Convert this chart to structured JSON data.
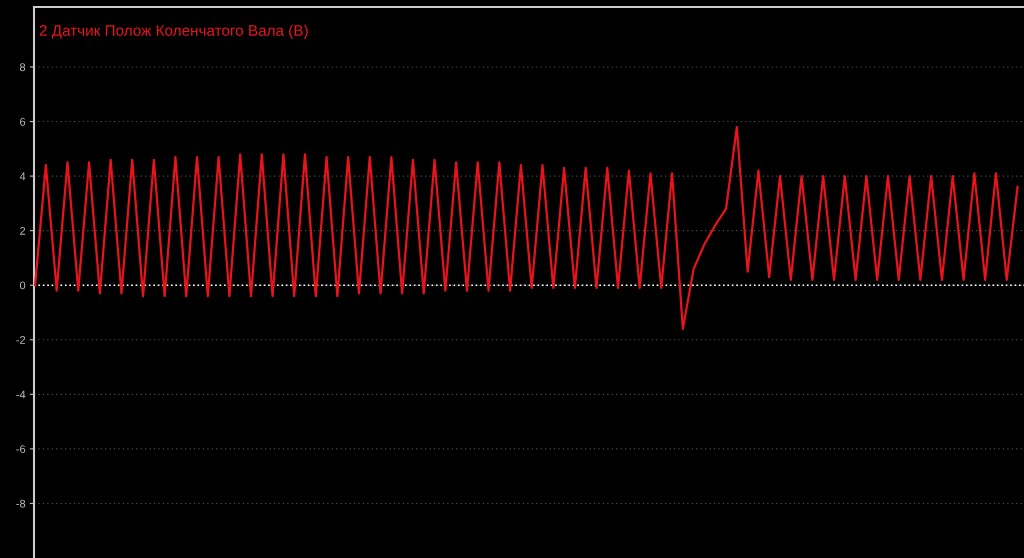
{
  "chart_data": {
    "type": "line",
    "title": "2 Датчик Полож Коленчатого Вала (В)",
    "categories": [
      null,
      null,
      null,
      null,
      null,
      null,
      null,
      null,
      null,
      null,
      null,
      null,
      null,
      null,
      null,
      null,
      null,
      null,
      null,
      null,
      null,
      null,
      null,
      null,
      null,
      null,
      null,
      null,
      null,
      null,
      null,
      null,
      null,
      null,
      null,
      null,
      null,
      null,
      null,
      null,
      null,
      null,
      null,
      null,
      null,
      null,
      null,
      null,
      null,
      null,
      null,
      null,
      null,
      null,
      null,
      null,
      null,
      null,
      null,
      null,
      null,
      null,
      null,
      null,
      null,
      null,
      null,
      null,
      null,
      null,
      null,
      null,
      null,
      null,
      null,
      null,
      null,
      null,
      null,
      null,
      null,
      null,
      null,
      null,
      null,
      null,
      null,
      null,
      null,
      null,
      null,
      null
    ],
    "series": [
      {
        "color": "#e8141c",
        "values": [
          0,
          4.4,
          -0.2,
          4.5,
          -0.2,
          4.5,
          -0.3,
          4.6,
          -0.3,
          4.6,
          -0.4,
          4.6,
          -0.4,
          4.7,
          -0.4,
          4.7,
          -0.4,
          4.7,
          -0.4,
          4.8,
          -0.4,
          4.8,
          -0.4,
          4.8,
          -0.4,
          4.8,
          -0.4,
          4.7,
          -0.4,
          4.7,
          -0.3,
          4.7,
          -0.3,
          4.7,
          -0.3,
          4.6,
          -0.3,
          4.6,
          -0.2,
          4.5,
          -0.2,
          4.5,
          -0.2,
          4.5,
          -0.2,
          4.4,
          -0.1,
          4.4,
          -0.1,
          4.3,
          -0.1,
          4.3,
          -0.1,
          4.3,
          -0.1,
          4.2,
          -0.1,
          4.1,
          -0.1,
          4.1,
          -1.6,
          0.6,
          1.5,
          2.2,
          2.8,
          5.8,
          0.5,
          4.2,
          0.3,
          4.0,
          0.2,
          4.0,
          0.2,
          4.0,
          0.2,
          4.0,
          0.2,
          4.0,
          0.2,
          4.0,
          0.2,
          4.0,
          0.2,
          4.0,
          0.2,
          4.0,
          0.2,
          4.1,
          0.2,
          4.1,
          0.2,
          3.6
        ]
      }
    ],
    "ylim": [
      -10,
      10.2
    ],
    "yticks": [
      -8,
      -6,
      -4,
      -2,
      0,
      2,
      4,
      6,
      8
    ],
    "grid": "y",
    "line_style": "solid",
    "ref_lines": [
      {
        "axis": "y",
        "value": 0,
        "color": "#ffffff",
        "line_style": "dotted"
      }
    ]
  }
}
